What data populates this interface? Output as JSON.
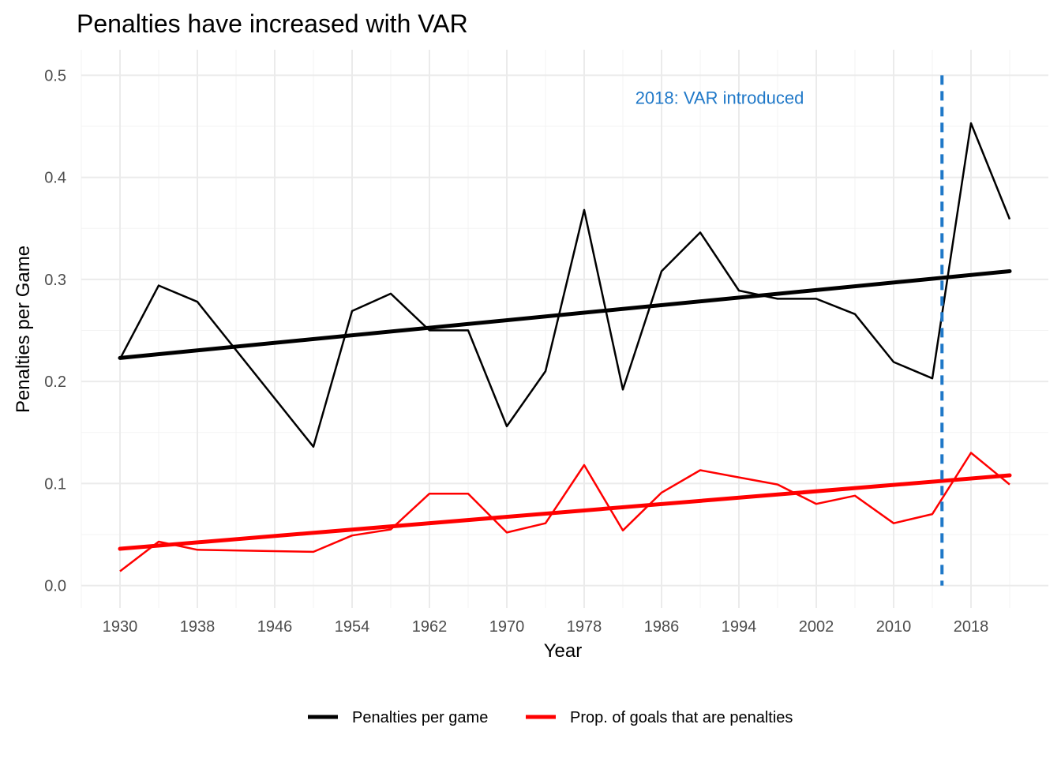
{
  "chart_data": {
    "type": "line",
    "title": "Penalties have increased with VAR",
    "xlabel": "Year",
    "ylabel": "Penalties per Game",
    "x_ticks": [
      "1930",
      "1938",
      "1946",
      "1954",
      "1962",
      "1970",
      "1978",
      "1986",
      "1994",
      "2002",
      "2010",
      "2018"
    ],
    "y_ticks": [
      "0.0",
      "0.1",
      "0.2",
      "0.3",
      "0.4",
      "0.5"
    ],
    "xlim": [
      1926,
      2026
    ],
    "ylim": [
      -0.022,
      0.525
    ],
    "grid": true,
    "legend_position": "bottom",
    "x": [
      1930,
      1934,
      1938,
      1950,
      1954,
      1958,
      1962,
      1966,
      1970,
      1974,
      1978,
      1982,
      1986,
      1990,
      1994,
      1998,
      2002,
      2006,
      2010,
      2014,
      2018,
      2022
    ],
    "series": [
      {
        "name": "Penalties per game",
        "color": "#000000",
        "values": [
          0.222,
          0.294,
          0.278,
          0.136,
          0.269,
          0.286,
          0.25,
          0.25,
          0.156,
          0.21,
          0.368,
          0.192,
          0.308,
          0.346,
          0.289,
          0.281,
          0.281,
          0.266,
          0.219,
          0.203,
          0.453,
          0.359
        ],
        "trend": [
          0.223,
          0.308
        ]
      },
      {
        "name": "Prop. of goals that are penalties",
        "color": "#ff0000",
        "values": [
          0.014,
          0.043,
          0.035,
          0.033,
          0.049,
          0.055,
          0.09,
          0.09,
          0.052,
          0.061,
          0.118,
          0.054,
          0.091,
          0.113,
          0.106,
          0.099,
          0.08,
          0.088,
          0.061,
          0.07,
          0.13,
          0.099
        ],
        "trend": [
          0.036,
          0.108
        ]
      }
    ],
    "annotations": [
      {
        "type": "vline",
        "x": 2015,
        "color": "#1f78c8",
        "style": "dashed"
      },
      {
        "type": "text",
        "text": "2018: VAR introduced",
        "x": 1992,
        "y": 0.478,
        "color": "#1f78c8"
      }
    ]
  }
}
